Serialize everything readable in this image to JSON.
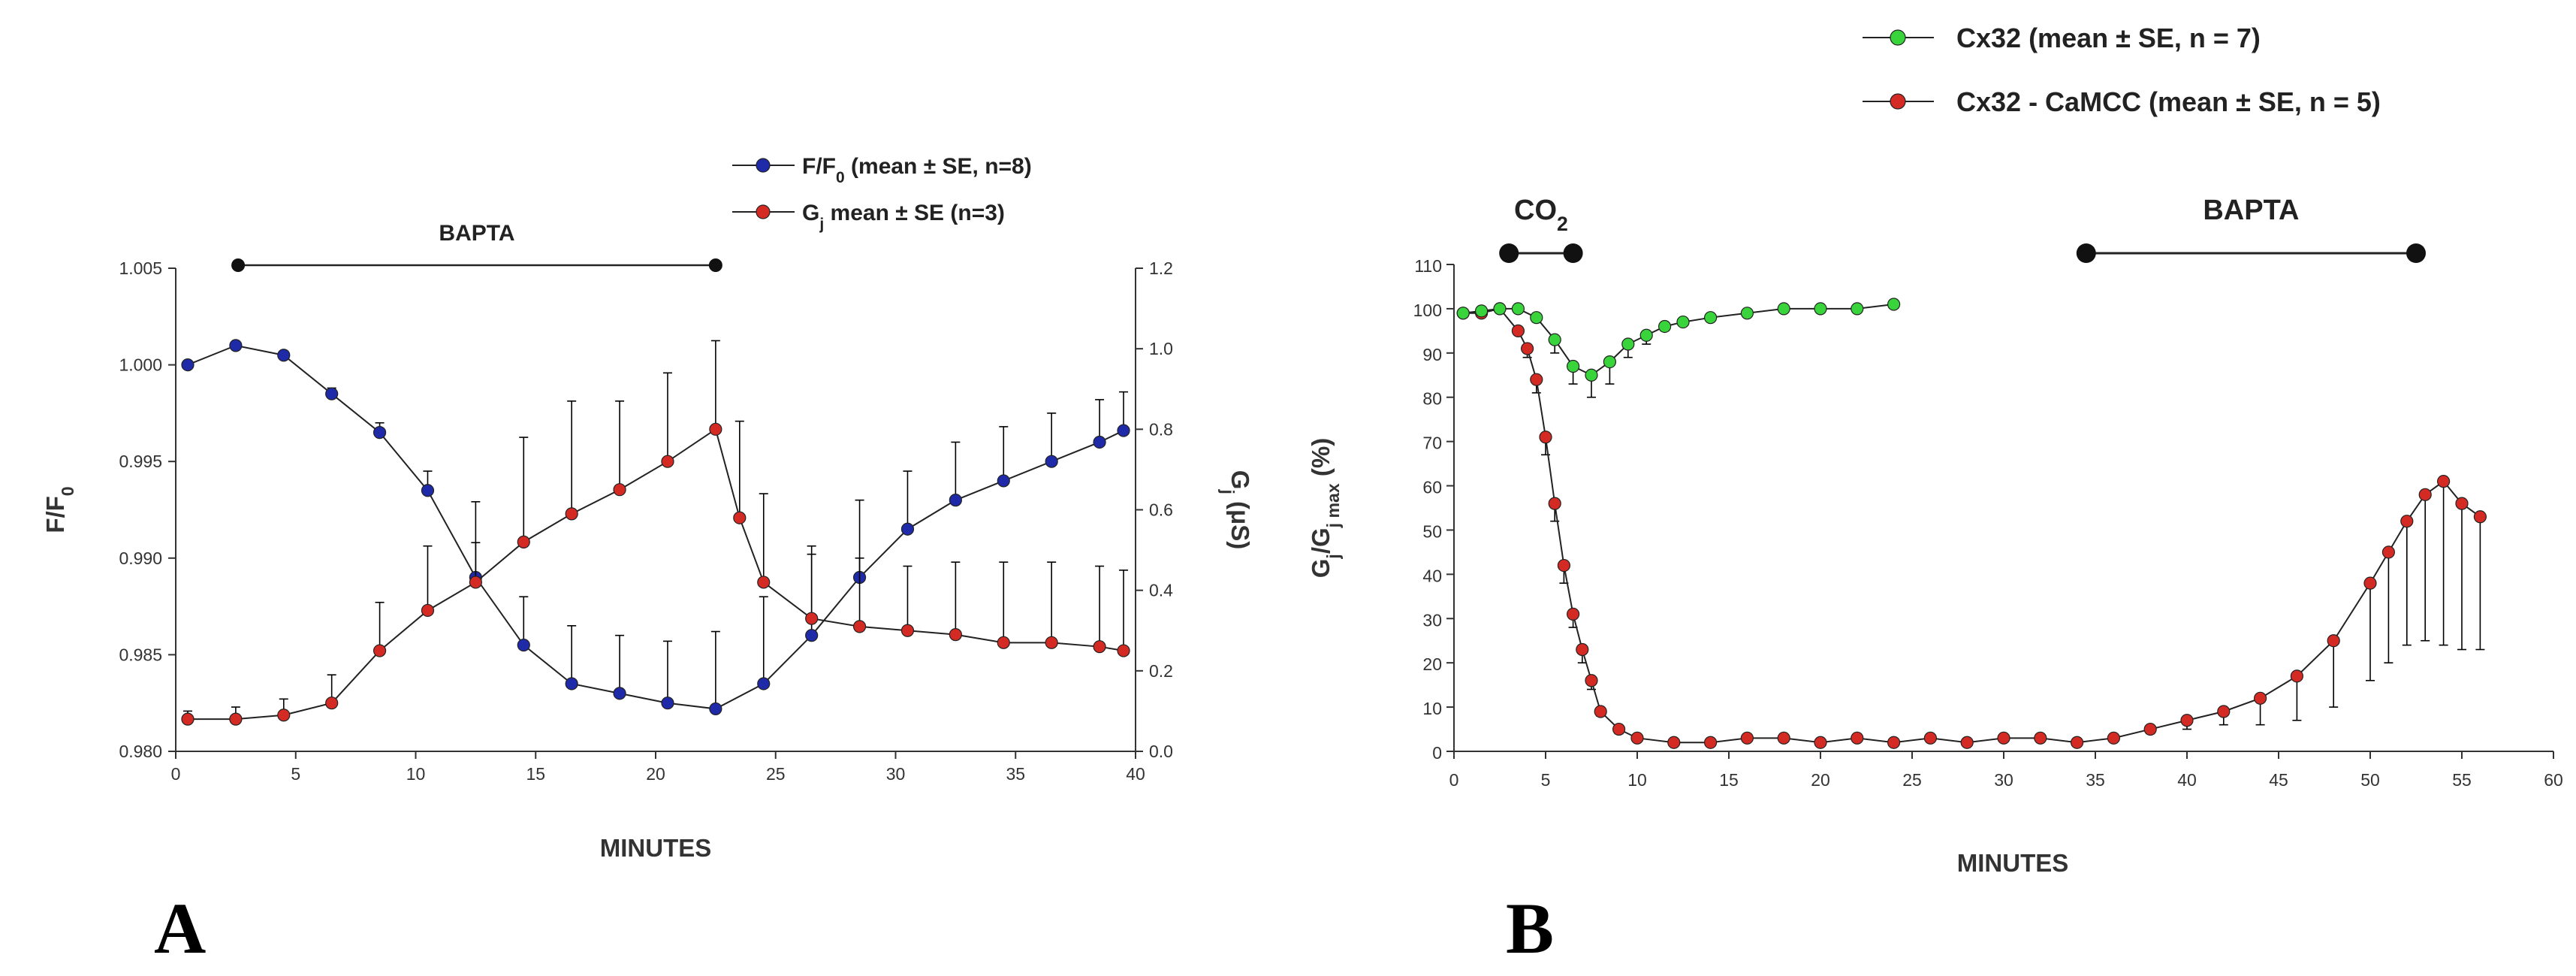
{
  "panels": {
    "a": {
      "letter": "A"
    },
    "b": {
      "letter": "B"
    }
  },
  "chart_data": [
    {
      "type": "line",
      "panel": "A",
      "xlabel": "MINUTES",
      "ylabel_left": "F/F",
      "ylabel_left_sub": "0",
      "ylabel_right": "G",
      "ylabel_right_sub": "j",
      "ylabel_right_unit": "(μS)",
      "xlim": [
        0,
        40
      ],
      "ylim_left": [
        0.98,
        1.005
      ],
      "ylim_right": [
        0.0,
        1.2
      ],
      "xticks": [
        "0",
        "5",
        "10",
        "15",
        "20",
        "25",
        "30",
        "35",
        "40"
      ],
      "yticks_left": [
        "0.980",
        "0.985",
        "0.990",
        "0.995",
        "1.000",
        "1.005"
      ],
      "yticks_right": [
        "0.0",
        "0.2",
        "0.4",
        "0.6",
        "0.8",
        "1.0",
        "1.2"
      ],
      "grid": false,
      "legend_position": "top-right",
      "annotation": {
        "text": "BAPTA",
        "x_start": 2.6,
        "x_end": 22.5
      },
      "series": [
        {
          "name": "F/F",
          "name_sub": "0",
          "name_rest": " (mean ± SE, n=8)",
          "color": "#1f2aa8",
          "axis": "left",
          "error_direction": "up",
          "x": [
            0.5,
            2.5,
            4.5,
            6.5,
            8.5,
            10.5,
            12.5,
            14.5,
            16.5,
            18.5,
            20.5,
            22.5,
            24.5,
            26.5,
            28.5,
            30.5,
            32.5,
            34.5,
            36.5,
            38.5,
            39.5
          ],
          "y": [
            1.0,
            1.001,
            1.0005,
            0.9985,
            0.9965,
            0.9935,
            0.989,
            0.9855,
            0.9835,
            0.983,
            0.9825,
            0.9822,
            0.9835,
            0.986,
            0.989,
            0.9915,
            0.993,
            0.994,
            0.995,
            0.996,
            0.9966
          ],
          "err": [
            0.0,
            0.0,
            0.0,
            0.0003,
            0.0005,
            0.001,
            0.0018,
            0.0025,
            0.003,
            0.003,
            0.0032,
            0.004,
            0.0045,
            0.0042,
            0.004,
            0.003,
            0.003,
            0.0028,
            0.0025,
            0.0022,
            0.002
          ]
        },
        {
          "name": "G",
          "name_sub": "j",
          "name_rest": " mean ± SE (n=3)",
          "color": "#d42a24",
          "axis": "right",
          "error_direction": "up",
          "x": [
            0.5,
            2.5,
            4.5,
            6.5,
            8.5,
            10.5,
            12.5,
            14.5,
            16.5,
            18.5,
            20.5,
            22.5,
            23.5,
            24.5,
            26.5,
            28.5,
            30.5,
            32.5,
            34.5,
            36.5,
            38.5,
            39.5
          ],
          "y": [
            0.08,
            0.08,
            0.09,
            0.12,
            0.25,
            0.35,
            0.42,
            0.52,
            0.59,
            0.65,
            0.72,
            0.8,
            0.58,
            0.42,
            0.33,
            0.31,
            0.3,
            0.29,
            0.27,
            0.27,
            0.26,
            0.25
          ],
          "err": [
            0.02,
            0.03,
            0.04,
            0.07,
            0.12,
            0.16,
            0.2,
            0.26,
            0.28,
            0.22,
            0.22,
            0.22,
            0.24,
            0.22,
            0.18,
            0.17,
            0.16,
            0.18,
            0.2,
            0.2,
            0.2,
            0.2
          ]
        }
      ]
    },
    {
      "type": "line",
      "panel": "B",
      "xlabel": "MINUTES",
      "ylabel": "G",
      "ylabel_sub1": "j",
      "ylabel_mid": "/G",
      "ylabel_sub2": "j max",
      "ylabel_rest": " (%)",
      "xlim": [
        0,
        60
      ],
      "ylim": [
        0,
        110
      ],
      "xticks": [
        "0",
        "5",
        "10",
        "15",
        "20",
        "25",
        "30",
        "35",
        "40",
        "45",
        "50",
        "55",
        "60"
      ],
      "yticks": [
        "0",
        "10",
        "20",
        "30",
        "40",
        "50",
        "60",
        "70",
        "80",
        "90",
        "100",
        "110"
      ],
      "grid": false,
      "legend_position": "top-right",
      "annotations": [
        {
          "text": "CO",
          "sub": "2",
          "x_start": 3.0,
          "x_end": 6.5
        },
        {
          "text": "BAPTA",
          "x_start": 34.5,
          "x_end": 52.5
        }
      ],
      "series": [
        {
          "name": "Cx32 (mean ± SE, n = 7)",
          "color": "#39d43c",
          "error_direction": "down",
          "x": [
            0.5,
            1.5,
            2.5,
            3.5,
            4.5,
            5.5,
            6.5,
            7.5,
            8.5,
            9.5,
            10.5,
            11.5,
            12.5,
            14.0,
            16.0,
            18.0,
            20.0,
            22.0,
            24.0
          ],
          "y": [
            99.0,
            99.5,
            100.0,
            100.0,
            98.0,
            93.0,
            87.0,
            85.0,
            88.0,
            92.0,
            94.0,
            96.0,
            97.0,
            98.0,
            99.0,
            100.0,
            100.0,
            100.0,
            101.0
          ],
          "err": [
            0,
            0,
            0,
            0,
            1,
            3,
            4,
            5,
            5,
            3,
            2,
            1,
            0,
            0,
            0,
            0,
            0,
            0,
            0
          ]
        },
        {
          "name": "Cx32 - CaMCC (mean ± SE, n = 5)",
          "color": "#d42a24",
          "error_direction": "down",
          "x": [
            0.5,
            1.5,
            2.5,
            3.5,
            4.0,
            4.5,
            5.0,
            5.5,
            6.0,
            6.5,
            7.0,
            7.5,
            8.0,
            9.0,
            10.0,
            12.0,
            14.0,
            16.0,
            18.0,
            20.0,
            22.0,
            24.0,
            26.0,
            28.0,
            30.0,
            32.0,
            34.0,
            36.0,
            38.0,
            40.0,
            42.0,
            44.0,
            46.0,
            48.0,
            50.0,
            51.0,
            52.0,
            53.0,
            54.0,
            55.0,
            56.0
          ],
          "y": [
            99.0,
            99.0,
            100.0,
            95.0,
            91.0,
            84.0,
            71.0,
            56.0,
            42.0,
            31.0,
            23.0,
            16.0,
            9.0,
            5.0,
            3.0,
            2.0,
            2.0,
            3.0,
            3.0,
            2.0,
            3.0,
            2.0,
            3.0,
            2.0,
            3.0,
            3.0,
            2.0,
            3.0,
            5.0,
            7.0,
            9.0,
            12.0,
            17.0,
            25.0,
            38.0,
            45.0,
            52.0,
            58.0,
            61.0,
            56.0,
            53.0
          ],
          "err": [
            0,
            0,
            0,
            0,
            2,
            3,
            4,
            4,
            4,
            3,
            3,
            2,
            1,
            1,
            0,
            0,
            0,
            0,
            0,
            0,
            0,
            0,
            0,
            0,
            0,
            0,
            0,
            0,
            1,
            2,
            3,
            6,
            10,
            15,
            22,
            25,
            28,
            33,
            37,
            33,
            30
          ]
        }
      ]
    }
  ]
}
